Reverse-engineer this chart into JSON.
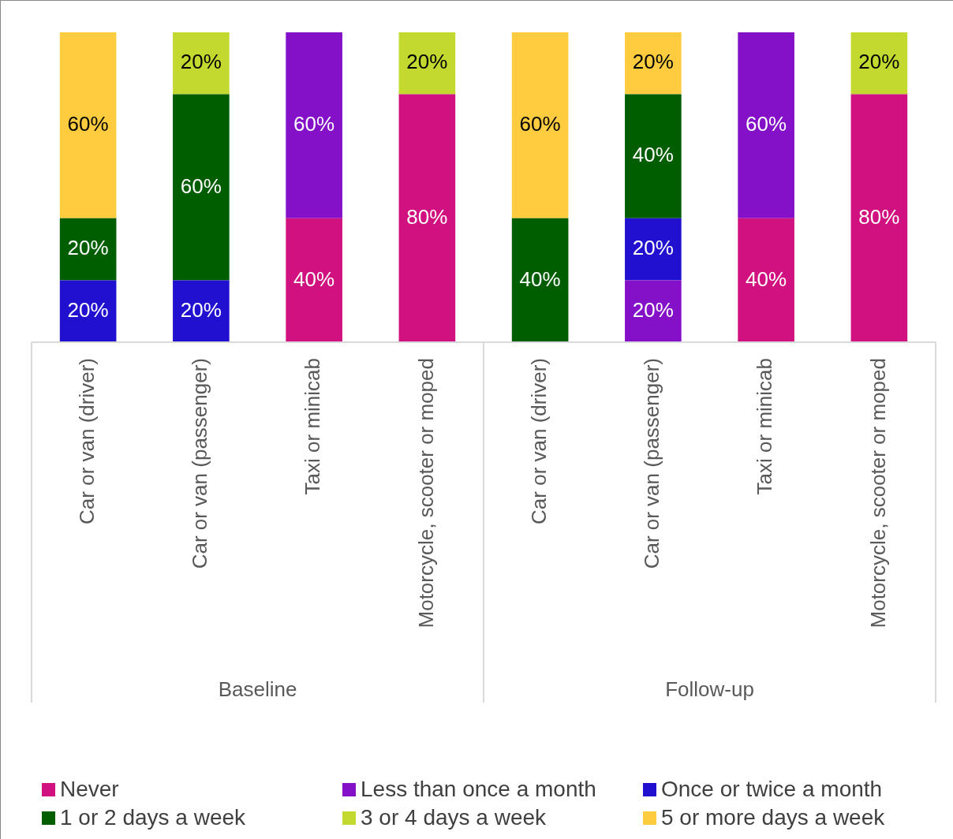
{
  "chart_data": {
    "type": "bar",
    "stacked": true,
    "legend": "bottom",
    "categories": [
      "Car or van (driver)",
      "Car or van (passenger)",
      "Taxi or minicab",
      "Motorcycle, scooter or moped",
      "Car or van (driver)",
      "Car or van (passenger)",
      "Taxi or minicab",
      "Motorcycle, scooter or moped"
    ],
    "annotations": [
      "Baseline",
      "Follow-up"
    ],
    "series": [
      {
        "name": "Never",
        "color": "#d0117f",
        "values": [
          null,
          null,
          40,
          80,
          null,
          null,
          40,
          80
        ],
        "value_labels": [
          null,
          null,
          "40%",
          "80%",
          null,
          null,
          "40%",
          "80%"
        ]
      },
      {
        "name": "Less than once a month",
        "color": "#8410c8",
        "values": [
          null,
          null,
          60,
          null,
          null,
          20,
          60,
          null
        ],
        "value_labels": [
          null,
          null,
          "60%",
          null,
          null,
          "20%",
          "60%",
          null
        ]
      },
      {
        "name": "Once or twice a month",
        "color": "#2210d0",
        "values": [
          20,
          20,
          null,
          null,
          null,
          20,
          null,
          null
        ],
        "value_labels": [
          "20%",
          "20%",
          null,
          null,
          null,
          "20%",
          null,
          null
        ]
      },
      {
        "name": "1 or 2 days a week",
        "color": "#005e00",
        "values": [
          20,
          60,
          null,
          null,
          40,
          40,
          null,
          null
        ],
        "value_labels": [
          "20%",
          "60%",
          null,
          null,
          "40%",
          "40%",
          null,
          null
        ]
      },
      {
        "name": "3 or 4 days a week",
        "color": "#c3d92f",
        "values": [
          null,
          20,
          null,
          20,
          null,
          null,
          null,
          20
        ],
        "value_labels": [
          null,
          "20%",
          null,
          "20%",
          null,
          null,
          null,
          "20%"
        ]
      },
      {
        "name": "5 or more days a week",
        "color": "#ffcc40",
        "values": [
          60,
          null,
          null,
          null,
          60,
          20,
          null,
          null
        ],
        "value_labels": [
          "60%",
          null,
          null,
          null,
          "60%",
          "20%",
          null,
          null
        ]
      }
    ]
  }
}
